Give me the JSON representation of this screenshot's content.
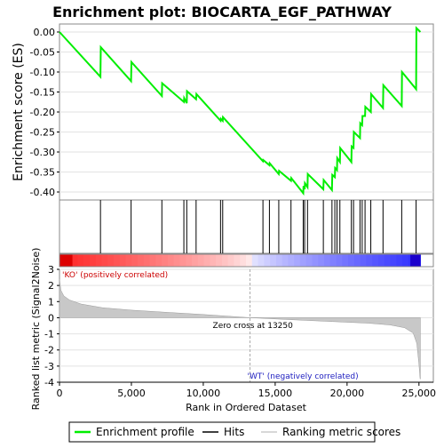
{
  "chart_data": {
    "type": "line",
    "title": "Enrichment plot: BIOCARTA_EGF_PATHWAY",
    "es_panel": {
      "ylabel": "Enrichment score (ES)",
      "ylim": [
        -0.42,
        0.02
      ],
      "yticks": [
        0.0,
        -0.05,
        -0.1,
        -0.15,
        -0.2,
        -0.25,
        -0.3,
        -0.35,
        -0.4
      ],
      "ytick_labels": [
        "0.00",
        "-0.05",
        "-0.10",
        "-0.15",
        "-0.20",
        "-0.25",
        "-0.30",
        "-0.35",
        "-0.40"
      ],
      "series_color": "#00ee00",
      "points": [
        [
          0,
          0.0
        ],
        [
          2850,
          -0.112
        ],
        [
          2870,
          -0.038
        ],
        [
          4980,
          -0.123
        ],
        [
          5000,
          -0.075
        ],
        [
          7120,
          -0.16
        ],
        [
          7140,
          -0.128
        ],
        [
          8650,
          -0.175
        ],
        [
          8670,
          -0.165
        ],
        [
          8850,
          -0.178
        ],
        [
          8870,
          -0.148
        ],
        [
          9500,
          -0.168
        ],
        [
          9520,
          -0.155
        ],
        [
          11200,
          -0.222
        ],
        [
          11220,
          -0.217
        ],
        [
          11350,
          -0.222
        ],
        [
          11370,
          -0.213
        ],
        [
          14150,
          -0.323
        ],
        [
          14170,
          -0.32
        ],
        [
          14600,
          -0.333
        ],
        [
          14620,
          -0.328
        ],
        [
          15250,
          -0.355
        ],
        [
          15270,
          -0.347
        ],
        [
          16100,
          -0.372
        ],
        [
          16120,
          -0.365
        ],
        [
          16950,
          -0.403
        ],
        [
          16970,
          -0.385
        ],
        [
          17050,
          -0.393
        ],
        [
          17070,
          -0.378
        ],
        [
          17250,
          -0.388
        ],
        [
          17270,
          -0.355
        ],
        [
          18350,
          -0.393
        ],
        [
          18370,
          -0.37
        ],
        [
          18950,
          -0.395
        ],
        [
          18970,
          -0.357
        ],
        [
          19150,
          -0.363
        ],
        [
          19170,
          -0.34
        ],
        [
          19300,
          -0.345
        ],
        [
          19320,
          -0.315
        ],
        [
          19500,
          -0.325
        ],
        [
          19520,
          -0.29
        ],
        [
          20300,
          -0.325
        ],
        [
          20320,
          -0.286
        ],
        [
          20450,
          -0.29
        ],
        [
          20470,
          -0.25
        ],
        [
          20900,
          -0.265
        ],
        [
          20920,
          -0.228
        ],
        [
          21050,
          -0.233
        ],
        [
          21070,
          -0.21
        ],
        [
          21250,
          -0.21
        ],
        [
          21270,
          -0.187
        ],
        [
          21650,
          -0.2
        ],
        [
          21670,
          -0.155
        ],
        [
          22500,
          -0.19
        ],
        [
          22520,
          -0.133
        ],
        [
          23800,
          -0.185
        ],
        [
          23820,
          -0.1
        ],
        [
          24800,
          -0.143
        ],
        [
          24820,
          0.01
        ],
        [
          25100,
          0.0
        ]
      ]
    },
    "hits_panel": {
      "hits": [
        2850,
        4980,
        7120,
        8650,
        8850,
        9500,
        11200,
        11350,
        14150,
        14600,
        15250,
        16100,
        16950,
        17050,
        17250,
        18350,
        18950,
        19150,
        19300,
        19500,
        20300,
        20450,
        20900,
        21050,
        21250,
        21650,
        22500,
        23800,
        24800
      ]
    },
    "rank_panel": {
      "ylabel": "Ranked list metric (Signal2Noise)",
      "ylim": [
        -4,
        3
      ],
      "yticks": [
        3,
        2,
        1,
        0,
        -1,
        -2,
        -3,
        -4
      ],
      "ytick_labels": [
        "3",
        "2",
        "1",
        "0",
        "-1",
        "-2",
        "-3",
        "-4"
      ],
      "xlabel": "Rank in Ordered Dataset",
      "xticks": [
        0,
        5000,
        10000,
        15000,
        20000,
        25000
      ],
      "xtick_labels": [
        "0",
        "5,000",
        "10,000",
        "15,000",
        "20,000",
        "25,000"
      ],
      "xlim": [
        0,
        26000
      ],
      "n_genes": 25100,
      "metric_curve": [
        [
          0,
          2.4
        ],
        [
          100,
          1.7
        ],
        [
          300,
          1.35
        ],
        [
          700,
          1.1
        ],
        [
          1500,
          0.85
        ],
        [
          3000,
          0.62
        ],
        [
          5000,
          0.47
        ],
        [
          7500,
          0.33
        ],
        [
          10000,
          0.2
        ],
        [
          13250,
          0.0
        ],
        [
          16000,
          -0.12
        ],
        [
          19000,
          -0.24
        ],
        [
          21500,
          -0.34
        ],
        [
          23000,
          -0.45
        ],
        [
          24000,
          -0.62
        ],
        [
          24600,
          -0.95
        ],
        [
          24850,
          -1.6
        ],
        [
          25000,
          -2.9
        ],
        [
          25080,
          -3.8
        ],
        [
          25100,
          -3.8
        ]
      ],
      "zero_cross_label": "Zero cross at 13250",
      "zero_cross": 13250,
      "pos_label": "'KO' (positively correlated)",
      "neg_label": "'WT' (negatively correlated)",
      "pos_color": "#d02020",
      "neg_color": "#3030c0"
    },
    "legend": {
      "items": [
        {
          "label": "Enrichment profile",
          "color": "#00ee00"
        },
        {
          "label": "Hits",
          "color": "#000000"
        },
        {
          "label": "Ranking metric scores",
          "color": "#cccccc"
        }
      ]
    }
  }
}
